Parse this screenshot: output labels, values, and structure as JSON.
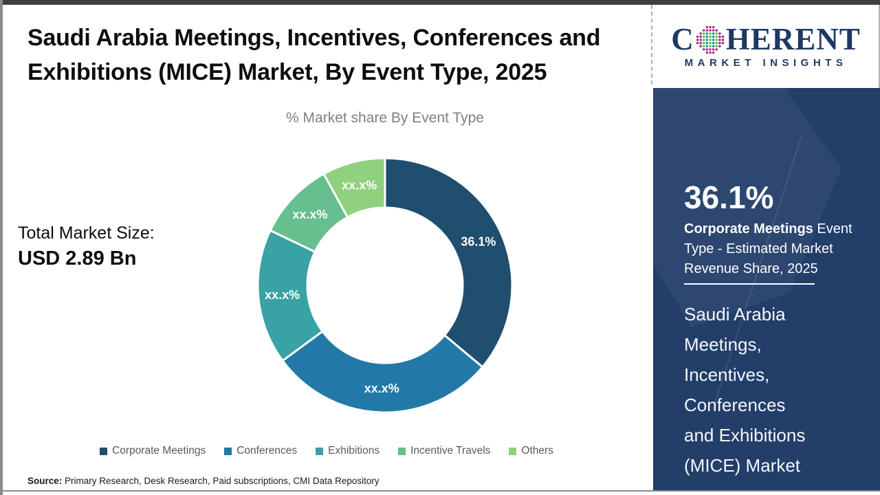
{
  "page": {
    "title": "Saudi Arabia Meetings, Incentives, Conferences and Exhibitions (MICE) Market, By Event Type, 2025"
  },
  "logo": {
    "prefix": "C",
    "suffix": "HERENT",
    "subtitle": "MARKET INSIGHTS",
    "navy": "#1F3864",
    "globe_colors": {
      "outer": "#A62C87",
      "green": "#67BE4A",
      "teal": "#1E96A0"
    }
  },
  "main": {
    "chart_title": "% Market share By Event Type",
    "total_market_size_label": "Total Market Size:",
    "total_market_size_value": "USD 2.89 Bn",
    "source_label": "Source:",
    "source_text": " Primary Research, Desk Research, Paid subscriptions, CMI Data Repository"
  },
  "chart_data": {
    "type": "pie",
    "subtype": "donut",
    "title": "% Market share By Event Type",
    "categories": [
      "Corporate Meetings",
      "Conferences",
      "Exhibitions",
      "Incentive Travels",
      "Others"
    ],
    "values": [
      36.1,
      28.8,
      17.2,
      9.9,
      8.0
    ],
    "labels": [
      "36.1%",
      "xx.x%",
      "xx.x%",
      "xx.x%",
      "xx.x%"
    ],
    "colors": [
      "#1F4E6E",
      "#2279A7",
      "#38A2A4",
      "#67BE8F",
      "#90D07F"
    ],
    "label_color": "#FFFFFF",
    "legend_position": "bottom",
    "start_angle_deg": 0,
    "direction": "clockwise"
  },
  "sidebar": {
    "bg_color": "#223E69",
    "stat_value": "36.1%",
    "stat_desc_bold": "Corporate Meetings",
    "stat_desc_rest": " Event Type - Estimated Market Revenue Share, 2025",
    "product_title_lines": [
      "Saudi Arabia",
      "Meetings,",
      "Incentives,",
      "Conferences",
      "and Exhibitions",
      "(MICE) Market"
    ]
  }
}
